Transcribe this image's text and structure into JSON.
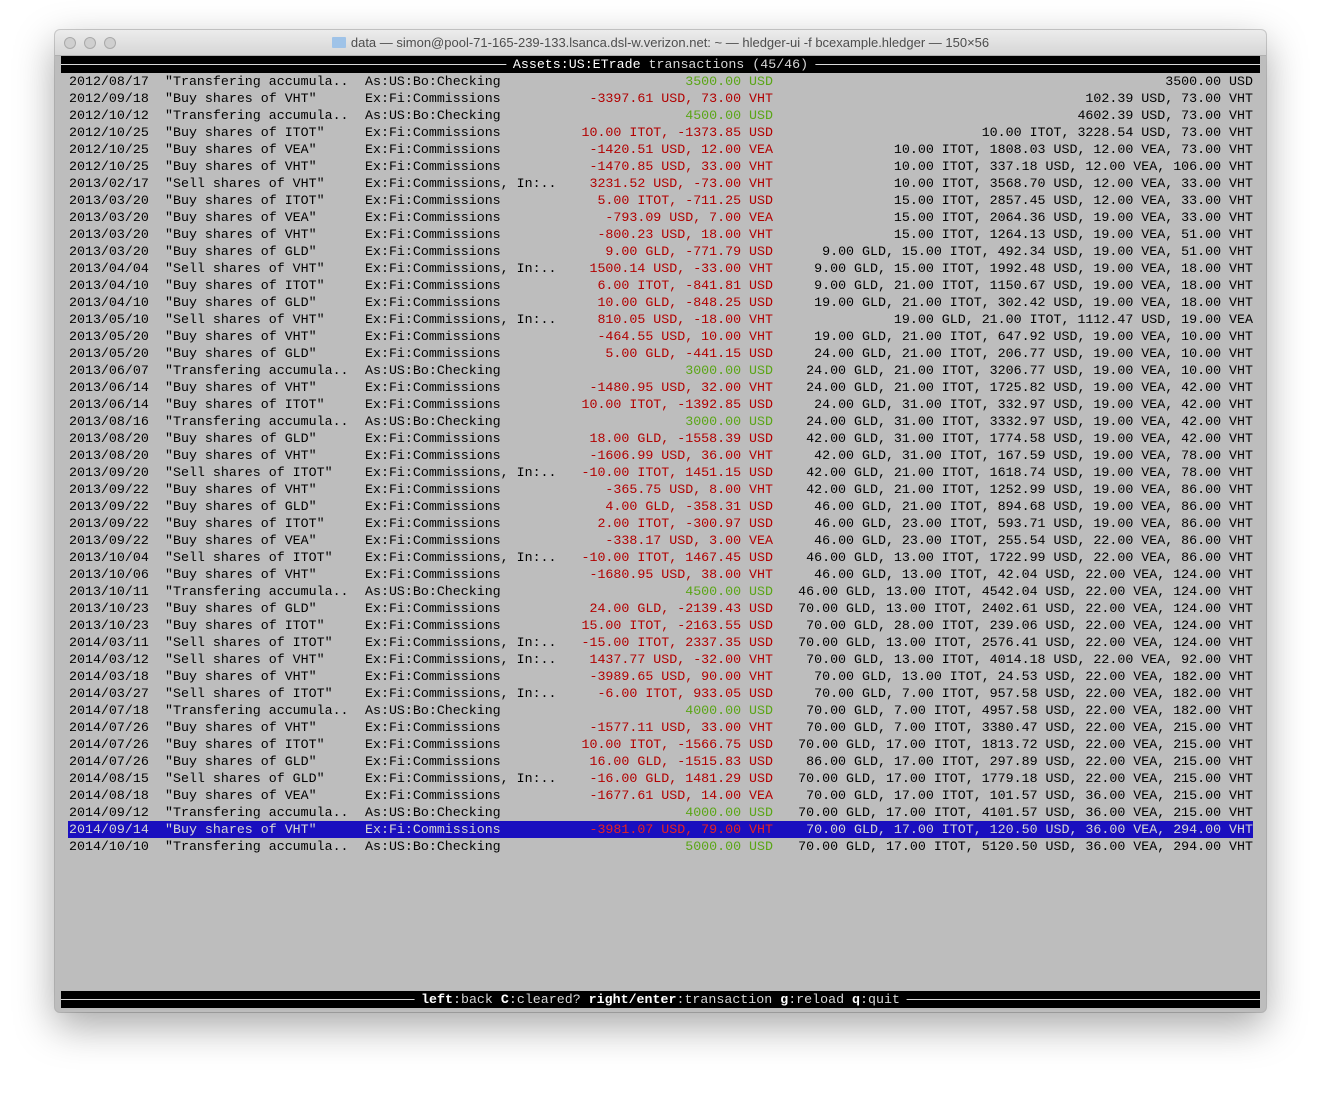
{
  "window": {
    "title": "data — simon@pool-71-165-239-133.lsanca.dsl-w.verizon.net: ~ — hledger-ui -f bcexample.hledger — 150×56"
  },
  "header": {
    "account": "Assets:US:ETrade",
    "suffix": " transactions (45/46)"
  },
  "colors": {
    "positive": "#5aa516",
    "negative": "#b10000",
    "selection_bg": "#1a0fbf",
    "background": "#bdbdbd"
  },
  "selected_index": 44,
  "rows": [
    {
      "date": "2012/08/17",
      "desc": "\"Transfering accumula..",
      "account": "As:US:Bo:Checking",
      "change": "3500.00 USD",
      "sign": "positive",
      "balance": "3500.00 USD"
    },
    {
      "date": "2012/09/18",
      "desc": "\"Buy shares of VHT\"",
      "account": "Ex:Fi:Commissions",
      "change": "-3397.61 USD, 73.00 VHT",
      "sign": "negative",
      "balance": "102.39 USD, 73.00 VHT"
    },
    {
      "date": "2012/10/12",
      "desc": "\"Transfering accumula..",
      "account": "As:US:Bo:Checking",
      "change": "4500.00 USD",
      "sign": "positive",
      "balance": "4602.39 USD, 73.00 VHT"
    },
    {
      "date": "2012/10/25",
      "desc": "\"Buy shares of ITOT\"",
      "account": "Ex:Fi:Commissions",
      "change": "10.00 ITOT, -1373.85 USD",
      "sign": "negative",
      "balance": "10.00 ITOT, 3228.54 USD, 73.00 VHT"
    },
    {
      "date": "2012/10/25",
      "desc": "\"Buy shares of VEA\"",
      "account": "Ex:Fi:Commissions",
      "change": "-1420.51 USD, 12.00 VEA",
      "sign": "negative",
      "balance": "10.00 ITOT, 1808.03 USD, 12.00 VEA, 73.00 VHT"
    },
    {
      "date": "2012/10/25",
      "desc": "\"Buy shares of VHT\"",
      "account": "Ex:Fi:Commissions",
      "change": "-1470.85 USD, 33.00 VHT",
      "sign": "negative",
      "balance": "10.00 ITOT, 337.18 USD, 12.00 VEA, 106.00 VHT"
    },
    {
      "date": "2013/02/17",
      "desc": "\"Sell shares of VHT\"",
      "account": "Ex:Fi:Commissions, In:..",
      "change": "3231.52 USD, -73.00 VHT",
      "sign": "negative",
      "balance": "10.00 ITOT, 3568.70 USD, 12.00 VEA, 33.00 VHT"
    },
    {
      "date": "2013/03/20",
      "desc": "\"Buy shares of ITOT\"",
      "account": "Ex:Fi:Commissions",
      "change": "5.00 ITOT, -711.25 USD",
      "sign": "negative",
      "balance": "15.00 ITOT, 2857.45 USD, 12.00 VEA, 33.00 VHT"
    },
    {
      "date": "2013/03/20",
      "desc": "\"Buy shares of VEA\"",
      "account": "Ex:Fi:Commissions",
      "change": "-793.09 USD, 7.00 VEA",
      "sign": "negative",
      "balance": "15.00 ITOT, 2064.36 USD, 19.00 VEA, 33.00 VHT"
    },
    {
      "date": "2013/03/20",
      "desc": "\"Buy shares of VHT\"",
      "account": "Ex:Fi:Commissions",
      "change": "-800.23 USD, 18.00 VHT",
      "sign": "negative",
      "balance": "15.00 ITOT, 1264.13 USD, 19.00 VEA, 51.00 VHT"
    },
    {
      "date": "2013/03/20",
      "desc": "\"Buy shares of GLD\"",
      "account": "Ex:Fi:Commissions",
      "change": "9.00 GLD, -771.79 USD",
      "sign": "negative",
      "balance": "9.00 GLD, 15.00 ITOT, 492.34 USD, 19.00 VEA, 51.00 VHT"
    },
    {
      "date": "2013/04/04",
      "desc": "\"Sell shares of VHT\"",
      "account": "Ex:Fi:Commissions, In:..",
      "change": "1500.14 USD, -33.00 VHT",
      "sign": "negative",
      "balance": "9.00 GLD, 15.00 ITOT, 1992.48 USD, 19.00 VEA, 18.00 VHT"
    },
    {
      "date": "2013/04/10",
      "desc": "\"Buy shares of ITOT\"",
      "account": "Ex:Fi:Commissions",
      "change": "6.00 ITOT, -841.81 USD",
      "sign": "negative",
      "balance": "9.00 GLD, 21.00 ITOT, 1150.67 USD, 19.00 VEA, 18.00 VHT"
    },
    {
      "date": "2013/04/10",
      "desc": "\"Buy shares of GLD\"",
      "account": "Ex:Fi:Commissions",
      "change": "10.00 GLD, -848.25 USD",
      "sign": "negative",
      "balance": "19.00 GLD, 21.00 ITOT, 302.42 USD, 19.00 VEA, 18.00 VHT"
    },
    {
      "date": "2013/05/10",
      "desc": "\"Sell shares of VHT\"",
      "account": "Ex:Fi:Commissions, In:..",
      "change": "810.05 USD, -18.00 VHT",
      "sign": "negative",
      "balance": "19.00 GLD, 21.00 ITOT, 1112.47 USD, 19.00 VEA"
    },
    {
      "date": "2013/05/20",
      "desc": "\"Buy shares of VHT\"",
      "account": "Ex:Fi:Commissions",
      "change": "-464.55 USD, 10.00 VHT",
      "sign": "negative",
      "balance": "19.00 GLD, 21.00 ITOT, 647.92 USD, 19.00 VEA, 10.00 VHT"
    },
    {
      "date": "2013/05/20",
      "desc": "\"Buy shares of GLD\"",
      "account": "Ex:Fi:Commissions",
      "change": "5.00 GLD, -441.15 USD",
      "sign": "negative",
      "balance": "24.00 GLD, 21.00 ITOT, 206.77 USD, 19.00 VEA, 10.00 VHT"
    },
    {
      "date": "2013/06/07",
      "desc": "\"Transfering accumula..",
      "account": "As:US:Bo:Checking",
      "change": "3000.00 USD",
      "sign": "positive",
      "balance": "24.00 GLD, 21.00 ITOT, 3206.77 USD, 19.00 VEA, 10.00 VHT"
    },
    {
      "date": "2013/06/14",
      "desc": "\"Buy shares of VHT\"",
      "account": "Ex:Fi:Commissions",
      "change": "-1480.95 USD, 32.00 VHT",
      "sign": "negative",
      "balance": "24.00 GLD, 21.00 ITOT, 1725.82 USD, 19.00 VEA, 42.00 VHT"
    },
    {
      "date": "2013/06/14",
      "desc": "\"Buy shares of ITOT\"",
      "account": "Ex:Fi:Commissions",
      "change": "10.00 ITOT, -1392.85 USD",
      "sign": "negative",
      "balance": "24.00 GLD, 31.00 ITOT, 332.97 USD, 19.00 VEA, 42.00 VHT"
    },
    {
      "date": "2013/08/16",
      "desc": "\"Transfering accumula..",
      "account": "As:US:Bo:Checking",
      "change": "3000.00 USD",
      "sign": "positive",
      "balance": "24.00 GLD, 31.00 ITOT, 3332.97 USD, 19.00 VEA, 42.00 VHT"
    },
    {
      "date": "2013/08/20",
      "desc": "\"Buy shares of GLD\"",
      "account": "Ex:Fi:Commissions",
      "change": "18.00 GLD, -1558.39 USD",
      "sign": "negative",
      "balance": "42.00 GLD, 31.00 ITOT, 1774.58 USD, 19.00 VEA, 42.00 VHT"
    },
    {
      "date": "2013/08/20",
      "desc": "\"Buy shares of VHT\"",
      "account": "Ex:Fi:Commissions",
      "change": "-1606.99 USD, 36.00 VHT",
      "sign": "negative",
      "balance": "42.00 GLD, 31.00 ITOT, 167.59 USD, 19.00 VEA, 78.00 VHT"
    },
    {
      "date": "2013/09/20",
      "desc": "\"Sell shares of ITOT\"",
      "account": "Ex:Fi:Commissions, In:..",
      "change": "-10.00 ITOT, 1451.15 USD",
      "sign": "negative",
      "balance": "42.00 GLD, 21.00 ITOT, 1618.74 USD, 19.00 VEA, 78.00 VHT"
    },
    {
      "date": "2013/09/22",
      "desc": "\"Buy shares of VHT\"",
      "account": "Ex:Fi:Commissions",
      "change": "-365.75 USD, 8.00 VHT",
      "sign": "negative",
      "balance": "42.00 GLD, 21.00 ITOT, 1252.99 USD, 19.00 VEA, 86.00 VHT"
    },
    {
      "date": "2013/09/22",
      "desc": "\"Buy shares of GLD\"",
      "account": "Ex:Fi:Commissions",
      "change": "4.00 GLD, -358.31 USD",
      "sign": "negative",
      "balance": "46.00 GLD, 21.00 ITOT, 894.68 USD, 19.00 VEA, 86.00 VHT"
    },
    {
      "date": "2013/09/22",
      "desc": "\"Buy shares of ITOT\"",
      "account": "Ex:Fi:Commissions",
      "change": "2.00 ITOT, -300.97 USD",
      "sign": "negative",
      "balance": "46.00 GLD, 23.00 ITOT, 593.71 USD, 19.00 VEA, 86.00 VHT"
    },
    {
      "date": "2013/09/22",
      "desc": "\"Buy shares of VEA\"",
      "account": "Ex:Fi:Commissions",
      "change": "-338.17 USD, 3.00 VEA",
      "sign": "negative",
      "balance": "46.00 GLD, 23.00 ITOT, 255.54 USD, 22.00 VEA, 86.00 VHT"
    },
    {
      "date": "2013/10/04",
      "desc": "\"Sell shares of ITOT\"",
      "account": "Ex:Fi:Commissions, In:..",
      "change": "-10.00 ITOT, 1467.45 USD",
      "sign": "negative",
      "balance": "46.00 GLD, 13.00 ITOT, 1722.99 USD, 22.00 VEA, 86.00 VHT"
    },
    {
      "date": "2013/10/06",
      "desc": "\"Buy shares of VHT\"",
      "account": "Ex:Fi:Commissions",
      "change": "-1680.95 USD, 38.00 VHT",
      "sign": "negative",
      "balance": "46.00 GLD, 13.00 ITOT, 42.04 USD, 22.00 VEA, 124.00 VHT"
    },
    {
      "date": "2013/10/11",
      "desc": "\"Transfering accumula..",
      "account": "As:US:Bo:Checking",
      "change": "4500.00 USD",
      "sign": "positive",
      "balance": "46.00 GLD, 13.00 ITOT, 4542.04 USD, 22.00 VEA, 124.00 VHT"
    },
    {
      "date": "2013/10/23",
      "desc": "\"Buy shares of GLD\"",
      "account": "Ex:Fi:Commissions",
      "change": "24.00 GLD, -2139.43 USD",
      "sign": "negative",
      "balance": "70.00 GLD, 13.00 ITOT, 2402.61 USD, 22.00 VEA, 124.00 VHT"
    },
    {
      "date": "2013/10/23",
      "desc": "\"Buy shares of ITOT\"",
      "account": "Ex:Fi:Commissions",
      "change": "15.00 ITOT, -2163.55 USD",
      "sign": "negative",
      "balance": "70.00 GLD, 28.00 ITOT, 239.06 USD, 22.00 VEA, 124.00 VHT"
    },
    {
      "date": "2014/03/11",
      "desc": "\"Sell shares of ITOT\"",
      "account": "Ex:Fi:Commissions, In:..",
      "change": "-15.00 ITOT, 2337.35 USD",
      "sign": "negative",
      "balance": "70.00 GLD, 13.00 ITOT, 2576.41 USD, 22.00 VEA, 124.00 VHT"
    },
    {
      "date": "2014/03/12",
      "desc": "\"Sell shares of VHT\"",
      "account": "Ex:Fi:Commissions, In:..",
      "change": "1437.77 USD, -32.00 VHT",
      "sign": "negative",
      "balance": "70.00 GLD, 13.00 ITOT, 4014.18 USD, 22.00 VEA, 92.00 VHT"
    },
    {
      "date": "2014/03/18",
      "desc": "\"Buy shares of VHT\"",
      "account": "Ex:Fi:Commissions",
      "change": "-3989.65 USD, 90.00 VHT",
      "sign": "negative",
      "balance": "70.00 GLD, 13.00 ITOT, 24.53 USD, 22.00 VEA, 182.00 VHT"
    },
    {
      "date": "2014/03/27",
      "desc": "\"Sell shares of ITOT\"",
      "account": "Ex:Fi:Commissions, In:..",
      "change": "-6.00 ITOT, 933.05 USD",
      "sign": "negative",
      "balance": "70.00 GLD, 7.00 ITOT, 957.58 USD, 22.00 VEA, 182.00 VHT"
    },
    {
      "date": "2014/07/18",
      "desc": "\"Transfering accumula..",
      "account": "As:US:Bo:Checking",
      "change": "4000.00 USD",
      "sign": "positive",
      "balance": "70.00 GLD, 7.00 ITOT, 4957.58 USD, 22.00 VEA, 182.00 VHT"
    },
    {
      "date": "2014/07/26",
      "desc": "\"Buy shares of VHT\"",
      "account": "Ex:Fi:Commissions",
      "change": "-1577.11 USD, 33.00 VHT",
      "sign": "negative",
      "balance": "70.00 GLD, 7.00 ITOT, 3380.47 USD, 22.00 VEA, 215.00 VHT"
    },
    {
      "date": "2014/07/26",
      "desc": "\"Buy shares of ITOT\"",
      "account": "Ex:Fi:Commissions",
      "change": "10.00 ITOT, -1566.75 USD",
      "sign": "negative",
      "balance": "70.00 GLD, 17.00 ITOT, 1813.72 USD, 22.00 VEA, 215.00 VHT"
    },
    {
      "date": "2014/07/26",
      "desc": "\"Buy shares of GLD\"",
      "account": "Ex:Fi:Commissions",
      "change": "16.00 GLD, -1515.83 USD",
      "sign": "negative",
      "balance": "86.00 GLD, 17.00 ITOT, 297.89 USD, 22.00 VEA, 215.00 VHT"
    },
    {
      "date": "2014/08/15",
      "desc": "\"Sell shares of GLD\"",
      "account": "Ex:Fi:Commissions, In:..",
      "change": "-16.00 GLD, 1481.29 USD",
      "sign": "negative",
      "balance": "70.00 GLD, 17.00 ITOT, 1779.18 USD, 22.00 VEA, 215.00 VHT"
    },
    {
      "date": "2014/08/18",
      "desc": "\"Buy shares of VEA\"",
      "account": "Ex:Fi:Commissions",
      "change": "-1677.61 USD, 14.00 VEA",
      "sign": "negative",
      "balance": "70.00 GLD, 17.00 ITOT, 101.57 USD, 36.00 VEA, 215.00 VHT"
    },
    {
      "date": "2014/09/12",
      "desc": "\"Transfering accumula..",
      "account": "As:US:Bo:Checking",
      "change": "4000.00 USD",
      "sign": "positive",
      "balance": "70.00 GLD, 17.00 ITOT, 4101.57 USD, 36.00 VEA, 215.00 VHT"
    },
    {
      "date": "2014/09/14",
      "desc": "\"Buy shares of VHT\"",
      "account": "Ex:Fi:Commissions",
      "change": "-3981.07 USD, 79.00 VHT",
      "sign": "negative",
      "balance": "70.00 GLD, 17.00 ITOT, 120.50 USD, 36.00 VEA, 294.00 VHT"
    },
    {
      "date": "2014/10/10",
      "desc": "\"Transfering accumula..",
      "account": "As:US:Bo:Checking",
      "change": "5000.00 USD",
      "sign": "positive",
      "balance": "70.00 GLD, 17.00 ITOT, 5120.50 USD, 36.00 VEA, 294.00 VHT"
    }
  ],
  "footer": {
    "keys": [
      {
        "key": "left",
        "action": "back"
      },
      {
        "key": "C",
        "action": "cleared?"
      },
      {
        "key": "right/enter",
        "action": "transaction"
      },
      {
        "key": "g",
        "action": "reload"
      },
      {
        "key": "q",
        "action": "quit"
      }
    ]
  }
}
